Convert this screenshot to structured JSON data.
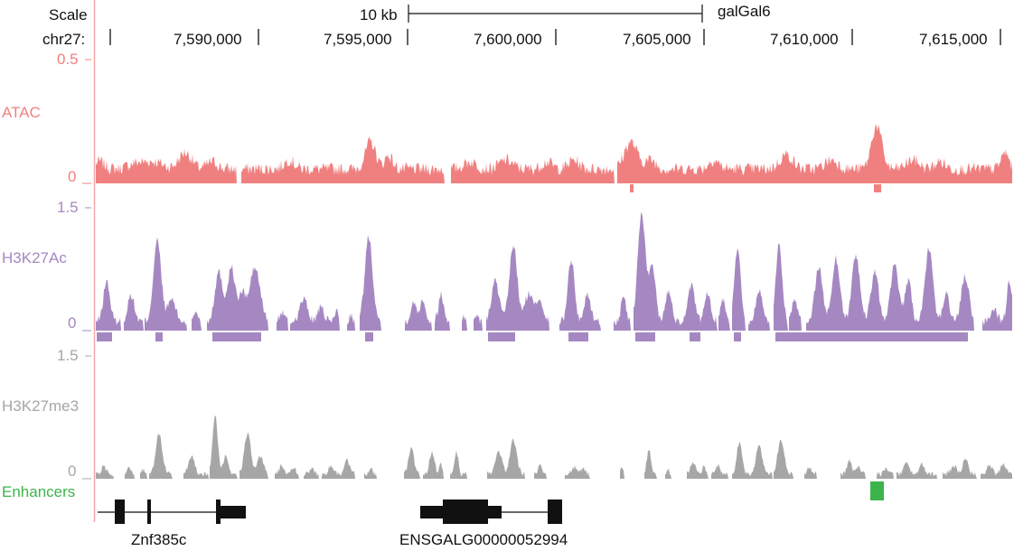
{
  "header": {
    "scale_label": "Scale",
    "scalebar_label": "10 kb",
    "assembly": "galGal6",
    "chrom_label": "chr27:",
    "positions": [
      "7,590,000",
      "7,595,000",
      "7,600,000",
      "7,605,000",
      "7,610,000",
      "7,615,000"
    ]
  },
  "tracks": {
    "atac": {
      "name": "ATAC",
      "ymax": "0.5",
      "ymin": "0",
      "color": "#f08080"
    },
    "h3k27ac": {
      "name": "H3K27Ac",
      "ymax": "1.5",
      "ymin": "0",
      "color": "#a588c1"
    },
    "h3k27me3": {
      "name": "H3K27me3",
      "ymax": "1.5",
      "ymin": "0",
      "color": "#a6a6a6"
    },
    "enhancers": {
      "name": "Enhancers",
      "color": "#3cb44b"
    }
  },
  "genes": [
    {
      "name": "Znf385c"
    },
    {
      "name": "ENSGALG00000052994"
    }
  ],
  "colors": {
    "axis_line": "#f4a7a7",
    "gene": "#111111"
  }
}
